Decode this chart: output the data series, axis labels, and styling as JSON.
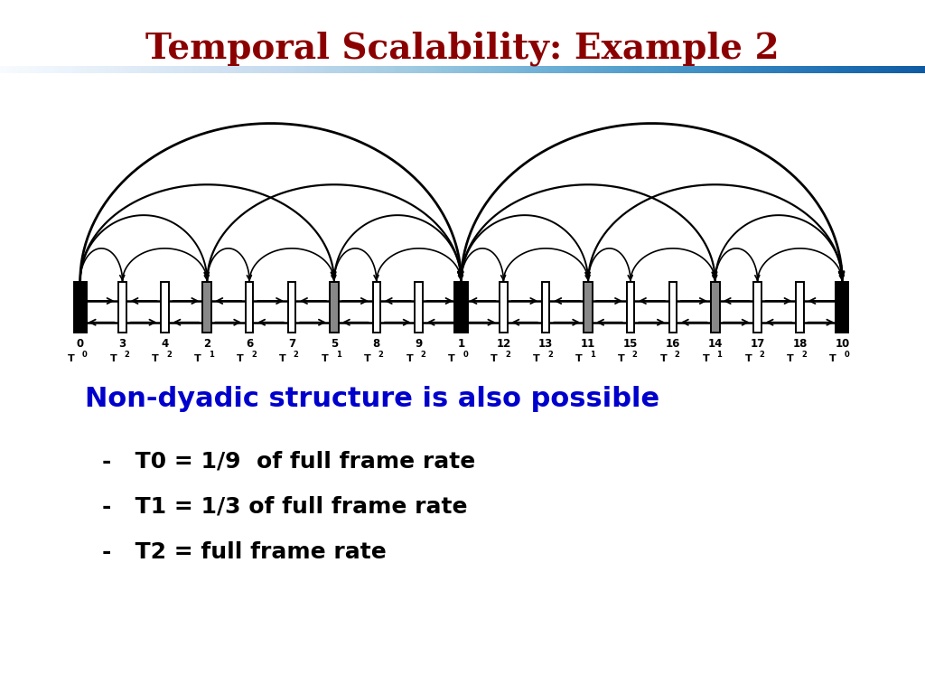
{
  "title": "Temporal Scalability: Example 2",
  "title_color": "#8B0000",
  "title_fontsize": 28,
  "bg_color": "#ffffff",
  "frame_numbers": [
    "0",
    "3",
    "4",
    "2",
    "6",
    "7",
    "5",
    "8",
    "9",
    "1",
    "12",
    "13",
    "11",
    "15",
    "16",
    "14",
    "17",
    "18",
    "10"
  ],
  "frame_types": [
    "T0",
    "T2",
    "T2",
    "T1",
    "T2",
    "T2",
    "T1",
    "T2",
    "T2",
    "T0",
    "T2",
    "T2",
    "T1",
    "T2",
    "T2",
    "T1",
    "T2",
    "T2",
    "T0"
  ],
  "bullet_color": "#0000CD",
  "bullet_text": "Non-dyadic structure is also possible",
  "bullet_fontsize": 22,
  "items": [
    "T0 = 1/9  of full frame rate",
    "T1 = 1/3 of full frame rate",
    "T2 = full frame rate"
  ],
  "item_fontsize": 18,
  "header_line_color": "#6699BB"
}
